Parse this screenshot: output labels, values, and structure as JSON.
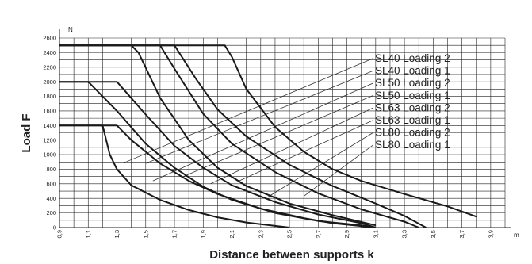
{
  "chart_data": {
    "type": "line",
    "xlabel": "Distance between supports k",
    "ylabel": "Load F",
    "x_unit": "m",
    "y_unit": "N",
    "xlim": [
      0.9,
      4.0
    ],
    "ylim": [
      0,
      2600
    ],
    "x_ticks": [
      "0,9",
      "1,1",
      "1,3",
      "1,5",
      "1,7",
      "1,9",
      "2,1",
      "2,3",
      "2,5",
      "2,7",
      "2,9",
      "3,1",
      "3,3",
      "3,5",
      "3,7",
      "3,9"
    ],
    "y_ticks": [
      "0",
      "200",
      "400",
      "600",
      "800",
      "1000",
      "1200",
      "1400",
      "1600",
      "1800",
      "2000",
      "2200",
      "2400",
      "2600"
    ],
    "grid": true,
    "legend_placement": "right, leader lines",
    "series": [
      {
        "name": "SL40 Loading 2",
        "x": [
          0.9,
          1.2,
          1.25,
          1.3,
          1.4,
          1.6,
          1.8,
          2.0,
          2.2,
          2.5
        ],
        "y": [
          1400,
          1400,
          1000,
          800,
          580,
          380,
          240,
          140,
          70,
          0
        ]
      },
      {
        "name": "SL40 Loading 1",
        "x": [
          0.9,
          1.3,
          1.4,
          1.6,
          1.8,
          2.0,
          2.3,
          2.6,
          2.8,
          3.1
        ],
        "y": [
          1400,
          1400,
          1200,
          880,
          640,
          460,
          260,
          130,
          60,
          0
        ]
      },
      {
        "name": "SL50 Loading 2",
        "x": [
          0.9,
          1.1,
          1.3,
          1.5,
          1.7,
          1.9,
          2.1,
          2.4,
          2.7,
          3.0,
          3.1
        ],
        "y": [
          2000,
          2000,
          1600,
          1150,
          820,
          560,
          380,
          200,
          90,
          30,
          0
        ]
      },
      {
        "name": "SL50 Loading 1",
        "x": [
          0.9,
          1.3,
          1.5,
          1.7,
          1.9,
          2.1,
          2.4,
          2.7,
          3.0,
          3.1
        ],
        "y": [
          2000,
          2000,
          1550,
          1120,
          820,
          580,
          350,
          180,
          60,
          0
        ]
      },
      {
        "name": "SL63 Loading 2",
        "x": [
          0.9,
          1.4,
          1.45,
          1.6,
          1.8,
          2.0,
          2.2,
          2.5,
          2.8,
          3.1
        ],
        "y": [
          2500,
          2500,
          2400,
          1780,
          1200,
          820,
          570,
          330,
          170,
          30
        ]
      },
      {
        "name": "SL63 Loading 1",
        "x": [
          0.9,
          1.6,
          1.7,
          1.9,
          2.1,
          2.4,
          2.7,
          3.0,
          3.3,
          3.4
        ],
        "y": [
          2500,
          2500,
          2180,
          1560,
          1150,
          760,
          470,
          250,
          80,
          0
        ]
      },
      {
        "name": "SL80 Loading 2",
        "x": [
          0.9,
          1.7,
          1.85,
          2.0,
          2.2,
          2.5,
          2.8,
          3.1,
          3.3,
          3.45
        ],
        "y": [
          2500,
          2500,
          2040,
          1620,
          1250,
          860,
          570,
          330,
          160,
          0
        ]
      },
      {
        "name": "SL80 Loading 1",
        "x": [
          0.9,
          2.05,
          2.1,
          2.2,
          2.4,
          2.6,
          2.8,
          3.0,
          3.3,
          3.6,
          3.8
        ],
        "y": [
          2500,
          2500,
          2340,
          1900,
          1380,
          1040,
          800,
          640,
          460,
          290,
          150
        ]
      }
    ]
  },
  "colors": {
    "grid": "#222222",
    "curve": "#1a1a1a",
    "leader": "#333333"
  }
}
